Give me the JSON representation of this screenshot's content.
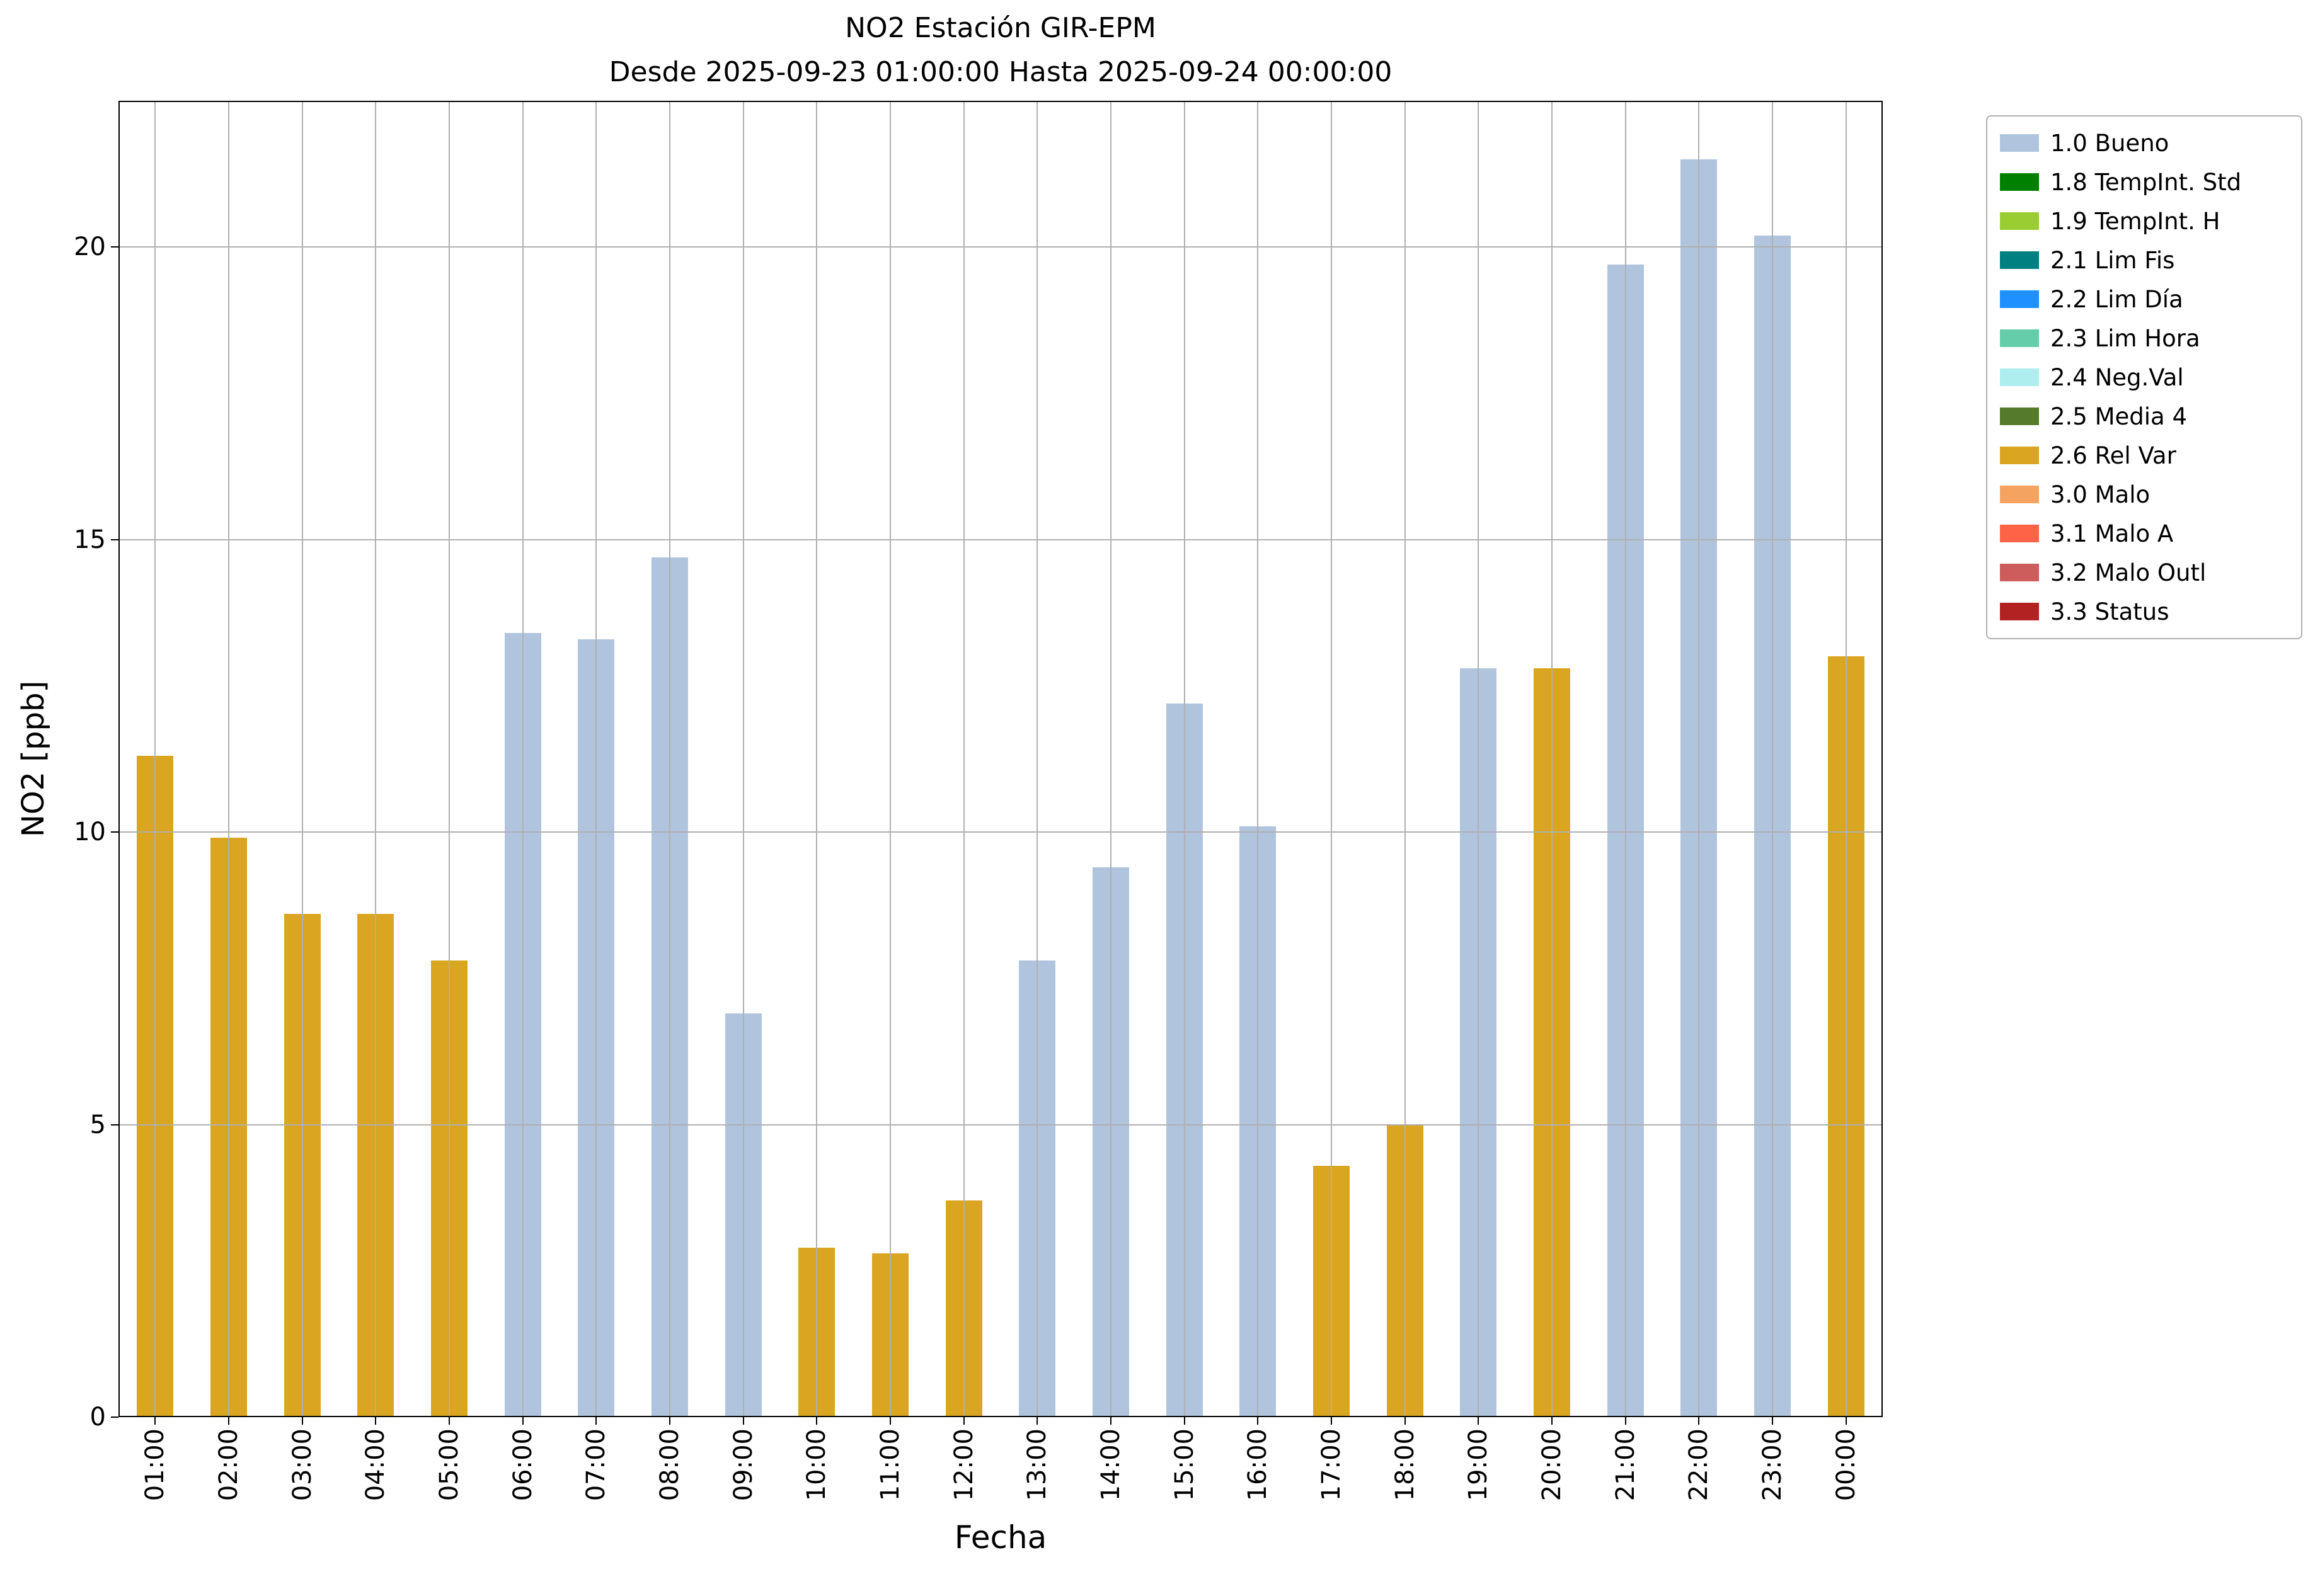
{
  "chart_data": {
    "type": "bar",
    "title": "NO2 Estación GIR-EPM",
    "subtitle": "Desde 2025-09-23 01:00:00 Hasta 2025-09-24 00:00:00",
    "xlabel": "Fecha",
    "ylabel": "NO2 [ppb]",
    "ylim": [
      0,
      22.5
    ],
    "yticks": [
      0,
      5,
      10,
      15,
      20
    ],
    "grid": true,
    "legend_position": "outside upper right",
    "categories": [
      "01:00",
      "02:00",
      "03:00",
      "04:00",
      "05:00",
      "06:00",
      "07:00",
      "08:00",
      "09:00",
      "10:00",
      "11:00",
      "12:00",
      "13:00",
      "14:00",
      "15:00",
      "16:00",
      "17:00",
      "18:00",
      "19:00",
      "20:00",
      "21:00",
      "22:00",
      "23:00",
      "00:00"
    ],
    "values": [
      11.3,
      9.9,
      8.6,
      8.6,
      7.8,
      13.4,
      13.3,
      14.7,
      6.9,
      2.9,
      2.8,
      3.7,
      7.8,
      9.4,
      12.2,
      10.1,
      4.3,
      5.0,
      12.8,
      12.8,
      19.7,
      21.5,
      20.2,
      13.0
    ],
    "bar_status": [
      "2.6 Rel Var",
      "2.6 Rel Var",
      "2.6 Rel Var",
      "2.6 Rel Var",
      "2.6 Rel Var",
      "1.0 Bueno",
      "1.0 Bueno",
      "1.0 Bueno",
      "1.0 Bueno",
      "2.6 Rel Var",
      "2.6 Rel Var",
      "2.6 Rel Var",
      "1.0 Bueno",
      "1.0 Bueno",
      "1.0 Bueno",
      "1.0 Bueno",
      "2.6 Rel Var",
      "2.6 Rel Var",
      "1.0 Bueno",
      "2.6 Rel Var",
      "1.0 Bueno",
      "1.0 Bueno",
      "1.0 Bueno",
      "2.6 Rel Var"
    ],
    "legend": [
      {
        "label": "1.0 Bueno",
        "color": "#B0C4DE"
      },
      {
        "label": "1.8 TempInt. Std",
        "color": "#008000"
      },
      {
        "label": "1.9 TempInt. H",
        "color": "#9ACD32"
      },
      {
        "label": "2.1 Lim Fis",
        "color": "#008080"
      },
      {
        "label": "2.2 Lim Día",
        "color": "#1E90FF"
      },
      {
        "label": "2.3 Lim Hora",
        "color": "#66CDAA"
      },
      {
        "label": "2.4 Neg.Val",
        "color": "#AFEEEE"
      },
      {
        "label": "2.5 Media 4",
        "color": "#557A2B"
      },
      {
        "label": "2.6 Rel Var",
        "color": "#DAA520"
      },
      {
        "label": "3.0 Malo",
        "color": "#F4A460"
      },
      {
        "label": "3.1 Malo A",
        "color": "#FF6347"
      },
      {
        "label": "3.2 Malo Outl",
        "color": "#CD5C5C"
      },
      {
        "label": "3.3 Status",
        "color": "#B22222"
      }
    ]
  }
}
